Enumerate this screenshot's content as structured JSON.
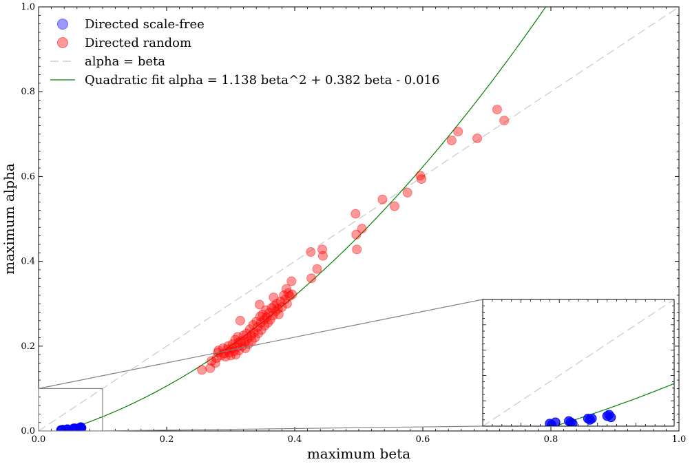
{
  "chart_data": {
    "type": "scatter",
    "title": "",
    "xlabel": "maximum beta",
    "ylabel": "maximum alpha",
    "xlim": [
      0.0,
      1.0
    ],
    "ylim": [
      0.0,
      1.0
    ],
    "x_ticks": [
      0.0,
      0.2,
      0.4,
      0.6,
      0.8,
      1.0
    ],
    "y_ticks": [
      0.0,
      0.2,
      0.4,
      0.6,
      0.8,
      1.0
    ],
    "x_tick_labels": [
      "0.0",
      "0.2",
      "0.4",
      "0.6",
      "0.8",
      "1.0"
    ],
    "y_tick_labels": [
      "0.0",
      "0.2",
      "0.4",
      "0.6",
      "0.8",
      "1.0"
    ],
    "grid": false,
    "legend_position": "top-left",
    "legend": {
      "scale_free": "Directed scale-free",
      "random": "Directed random",
      "identity": "alpha = beta",
      "fit": "Quadratic fit alpha = 1.138 beta^2 + 0.382 beta - 0.016"
    },
    "colors": {
      "scale_free": "#0000ff",
      "random": "#ff0000",
      "identity": "#cccccc",
      "fit": "#008000",
      "inset_border": "#808080"
    },
    "fit": {
      "a": 1.138,
      "b": 0.382,
      "c": -0.016
    },
    "series": [
      {
        "name": "Directed scale-free",
        "points": [
          [
            0.035,
            0.002
          ],
          [
            0.036,
            0.001
          ],
          [
            0.038,
            0.003
          ],
          [
            0.045,
            0.004
          ],
          [
            0.046,
            0.003
          ],
          [
            0.047,
            0.002
          ],
          [
            0.055,
            0.006
          ],
          [
            0.056,
            0.005
          ],
          [
            0.057,
            0.006
          ],
          [
            0.065,
            0.008
          ],
          [
            0.066,
            0.009
          ],
          [
            0.067,
            0.007
          ]
        ]
      },
      {
        "name": "Directed random",
        "points": [
          [
            0.255,
            0.144
          ],
          [
            0.268,
            0.148
          ],
          [
            0.27,
            0.165
          ],
          [
            0.276,
            0.16
          ],
          [
            0.278,
            0.172
          ],
          [
            0.28,
            0.185
          ],
          [
            0.281,
            0.19
          ],
          [
            0.285,
            0.178
          ],
          [
            0.288,
            0.195
          ],
          [
            0.29,
            0.183
          ],
          [
            0.292,
            0.175
          ],
          [
            0.295,
            0.192
          ],
          [
            0.296,
            0.2
          ],
          [
            0.298,
            0.185
          ],
          [
            0.3,
            0.178
          ],
          [
            0.302,
            0.195
          ],
          [
            0.303,
            0.205
          ],
          [
            0.305,
            0.188
          ],
          [
            0.307,
            0.215
          ],
          [
            0.308,
            0.18
          ],
          [
            0.31,
            0.198
          ],
          [
            0.311,
            0.222
          ],
          [
            0.312,
            0.208
          ],
          [
            0.313,
            0.19
          ],
          [
            0.315,
            0.26
          ],
          [
            0.316,
            0.212
          ],
          [
            0.318,
            0.2
          ],
          [
            0.32,
            0.225
          ],
          [
            0.322,
            0.21
          ],
          [
            0.323,
            0.195
          ],
          [
            0.325,
            0.23
          ],
          [
            0.326,
            0.218
          ],
          [
            0.328,
            0.205
          ],
          [
            0.33,
            0.24
          ],
          [
            0.332,
            0.225
          ],
          [
            0.333,
            0.212
          ],
          [
            0.335,
            0.25
          ],
          [
            0.336,
            0.232
          ],
          [
            0.338,
            0.22
          ],
          [
            0.34,
            0.258
          ],
          [
            0.342,
            0.245
          ],
          [
            0.343,
            0.23
          ],
          [
            0.345,
            0.298
          ],
          [
            0.346,
            0.27
          ],
          [
            0.347,
            0.255
          ],
          [
            0.348,
            0.238
          ],
          [
            0.35,
            0.275
          ],
          [
            0.352,
            0.262
          ],
          [
            0.353,
            0.248
          ],
          [
            0.355,
            0.285
          ],
          [
            0.356,
            0.268
          ],
          [
            0.358,
            0.255
          ],
          [
            0.36,
            0.278
          ],
          [
            0.362,
            0.262
          ],
          [
            0.364,
            0.29
          ],
          [
            0.366,
            0.272
          ],
          [
            0.367,
            0.315
          ],
          [
            0.368,
            0.295
          ],
          [
            0.37,
            0.282
          ],
          [
            0.372,
            0.3
          ],
          [
            0.374,
            0.288
          ],
          [
            0.375,
            0.275
          ],
          [
            0.378,
            0.305
          ],
          [
            0.38,
            0.292
          ],
          [
            0.383,
            0.32
          ],
          [
            0.385,
            0.31
          ],
          [
            0.387,
            0.335
          ],
          [
            0.388,
            0.3
          ],
          [
            0.39,
            0.325
          ],
          [
            0.392,
            0.318
          ],
          [
            0.395,
            0.353
          ],
          [
            0.396,
            0.322
          ],
          [
            0.425,
            0.422
          ],
          [
            0.426,
            0.36
          ],
          [
            0.435,
            0.382
          ],
          [
            0.443,
            0.428
          ],
          [
            0.444,
            0.413
          ],
          [
            0.495,
            0.512
          ],
          [
            0.496,
            0.463
          ],
          [
            0.497,
            0.428
          ],
          [
            0.505,
            0.477
          ],
          [
            0.537,
            0.546
          ],
          [
            0.556,
            0.53
          ],
          [
            0.576,
            0.562
          ],
          [
            0.596,
            0.602
          ],
          [
            0.598,
            0.594
          ],
          [
            0.645,
            0.685
          ],
          [
            0.655,
            0.706
          ],
          [
            0.685,
            0.69
          ],
          [
            0.716,
            0.758
          ],
          [
            0.727,
            0.732
          ]
        ]
      }
    ]
  }
}
